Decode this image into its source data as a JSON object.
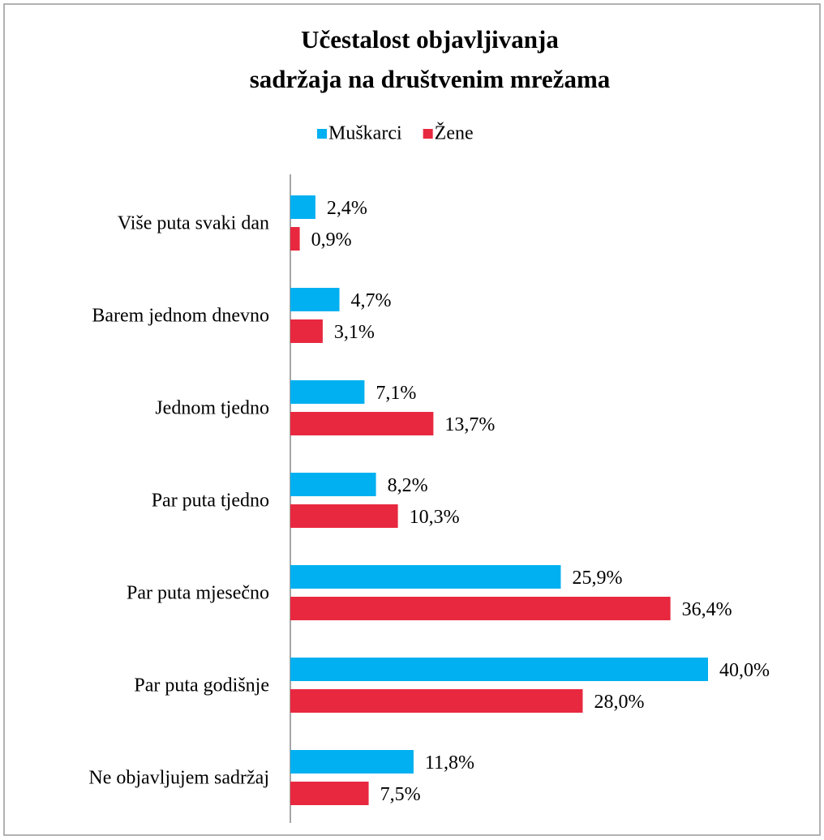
{
  "chart_data": {
    "type": "hbar",
    "title": [
      "Učestalost objavljivanja",
      "sadržaja na društvenim mrežama"
    ],
    "categories": [
      "Više puta svaki dan",
      "Barem jednom dnevno",
      "Jednom tjedno",
      "Par puta tjedno",
      "Par puta mjesečno",
      "Par puta godišnje",
      "Ne objavljujem sadržaj"
    ],
    "series": [
      {
        "name": "Muškarci",
        "color": "#00b0f0",
        "values": [
          2.4,
          4.7,
          7.1,
          8.2,
          25.9,
          40.0,
          11.8
        ],
        "value_labels": [
          "2,4%",
          "4,7%",
          "7,1%",
          "8,2%",
          "25,9%",
          "40,0%",
          "11,8%"
        ]
      },
      {
        "name": "Žene",
        "color": "#e8283f",
        "values": [
          0.9,
          3.1,
          13.7,
          10.3,
          36.4,
          28.0,
          7.5
        ],
        "value_labels": [
          "0,9%",
          "3,1%",
          "13,7%",
          "10,3%",
          "36,4%",
          "28,0%",
          "7,5%"
        ]
      }
    ],
    "legend": "top"
  }
}
